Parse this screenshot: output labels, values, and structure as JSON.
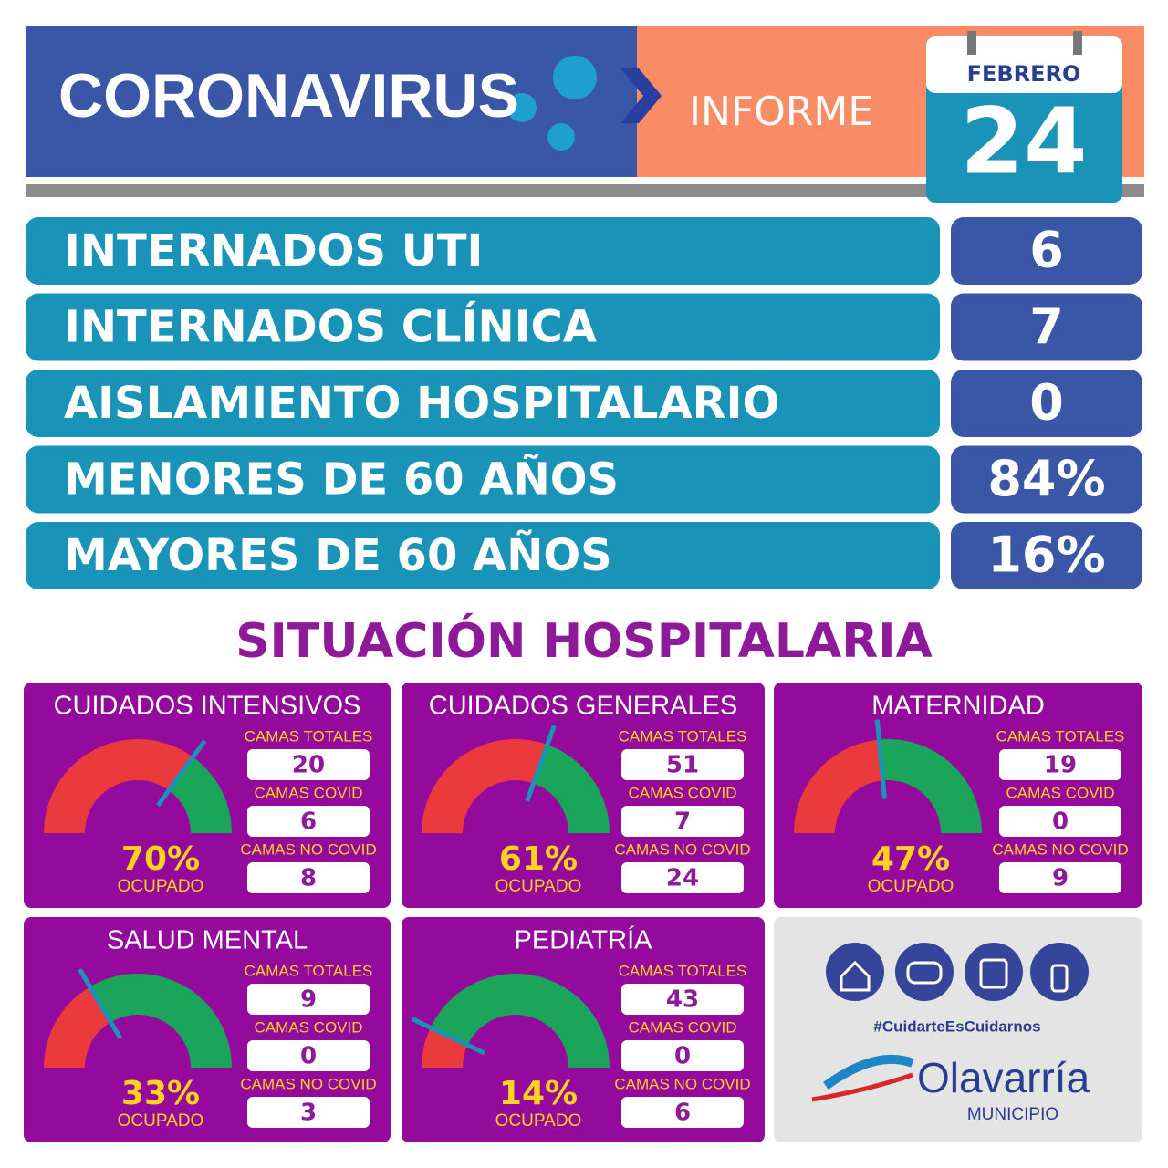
{
  "header": {
    "title": "CORONAVIRUS",
    "subtitle": "INFORME",
    "month": "FEBRERO",
    "day": 24
  },
  "stats": [
    {
      "label": "INTERNADOS UTI",
      "value": 6
    },
    {
      "label": "INTERNADOS CLÍNICA",
      "value": 7
    },
    {
      "label": "AISLAMIENTO HOSPITALARIO",
      "value": 0
    },
    {
      "label": "MENORES DE 60 AÑOS",
      "value": "84%"
    },
    {
      "label": "MAYORES DE 60 AÑOS",
      "value": "16%"
    }
  ],
  "section_title": "SITUACIÓN HOSPITALARIA",
  "units": [
    {
      "name": "CUIDADOS INTENSIVOS",
      "occupancy": {
        "value": 70,
        "label": "70%"
      },
      "caption": "OCUPADO",
      "fields": [
        {
          "label": "CAMAS TOTALES",
          "value": 20
        },
        {
          "label": "CAMAS COVID",
          "value": 6
        },
        {
          "label": "CAMAS NO COVID",
          "value": 8
        }
      ]
    },
    {
      "name": "CUIDADOS GENERALES",
      "occupancy": {
        "value": 61,
        "label": "61%"
      },
      "caption": "OCUPADO",
      "fields": [
        {
          "label": "CAMAS TOTALES",
          "value": 51
        },
        {
          "label": "CAMAS COVID",
          "value": 7
        },
        {
          "label": "CAMAS NO COVID",
          "value": 24
        }
      ]
    },
    {
      "name": "MATERNIDAD",
      "occupancy": {
        "value": 47,
        "label": "47%"
      },
      "caption": "OCUPADO",
      "fields": [
        {
          "label": "CAMAS TOTALES",
          "value": 19
        },
        {
          "label": "CAMAS COVID",
          "value": 0
        },
        {
          "label": "CAMAS NO COVID",
          "value": 9
        }
      ]
    },
    {
      "name": "SALUD MENTAL",
      "occupancy": {
        "value": 33,
        "label": "33%"
      },
      "caption": "OCUPADO",
      "fields": [
        {
          "label": "CAMAS TOTALES",
          "value": 9
        },
        {
          "label": "CAMAS COVID",
          "value": 0
        },
        {
          "label": "CAMAS NO COVID",
          "value": 3
        }
      ]
    },
    {
      "name": "PEDIATRÍA",
      "occupancy": {
        "value": 14,
        "label": "14%"
      },
      "caption": "OCUPADO",
      "fields": [
        {
          "label": "CAMAS TOTALES",
          "value": 43
        },
        {
          "label": "CAMAS COVID",
          "value": 0
        },
        {
          "label": "CAMAS NO COVID",
          "value": 6
        }
      ]
    }
  ],
  "footer": {
    "hashtag": "#CuidarteEsCuidarnos",
    "brand": "Olavarría",
    "brand_sub": "MUNICIPIO"
  }
}
